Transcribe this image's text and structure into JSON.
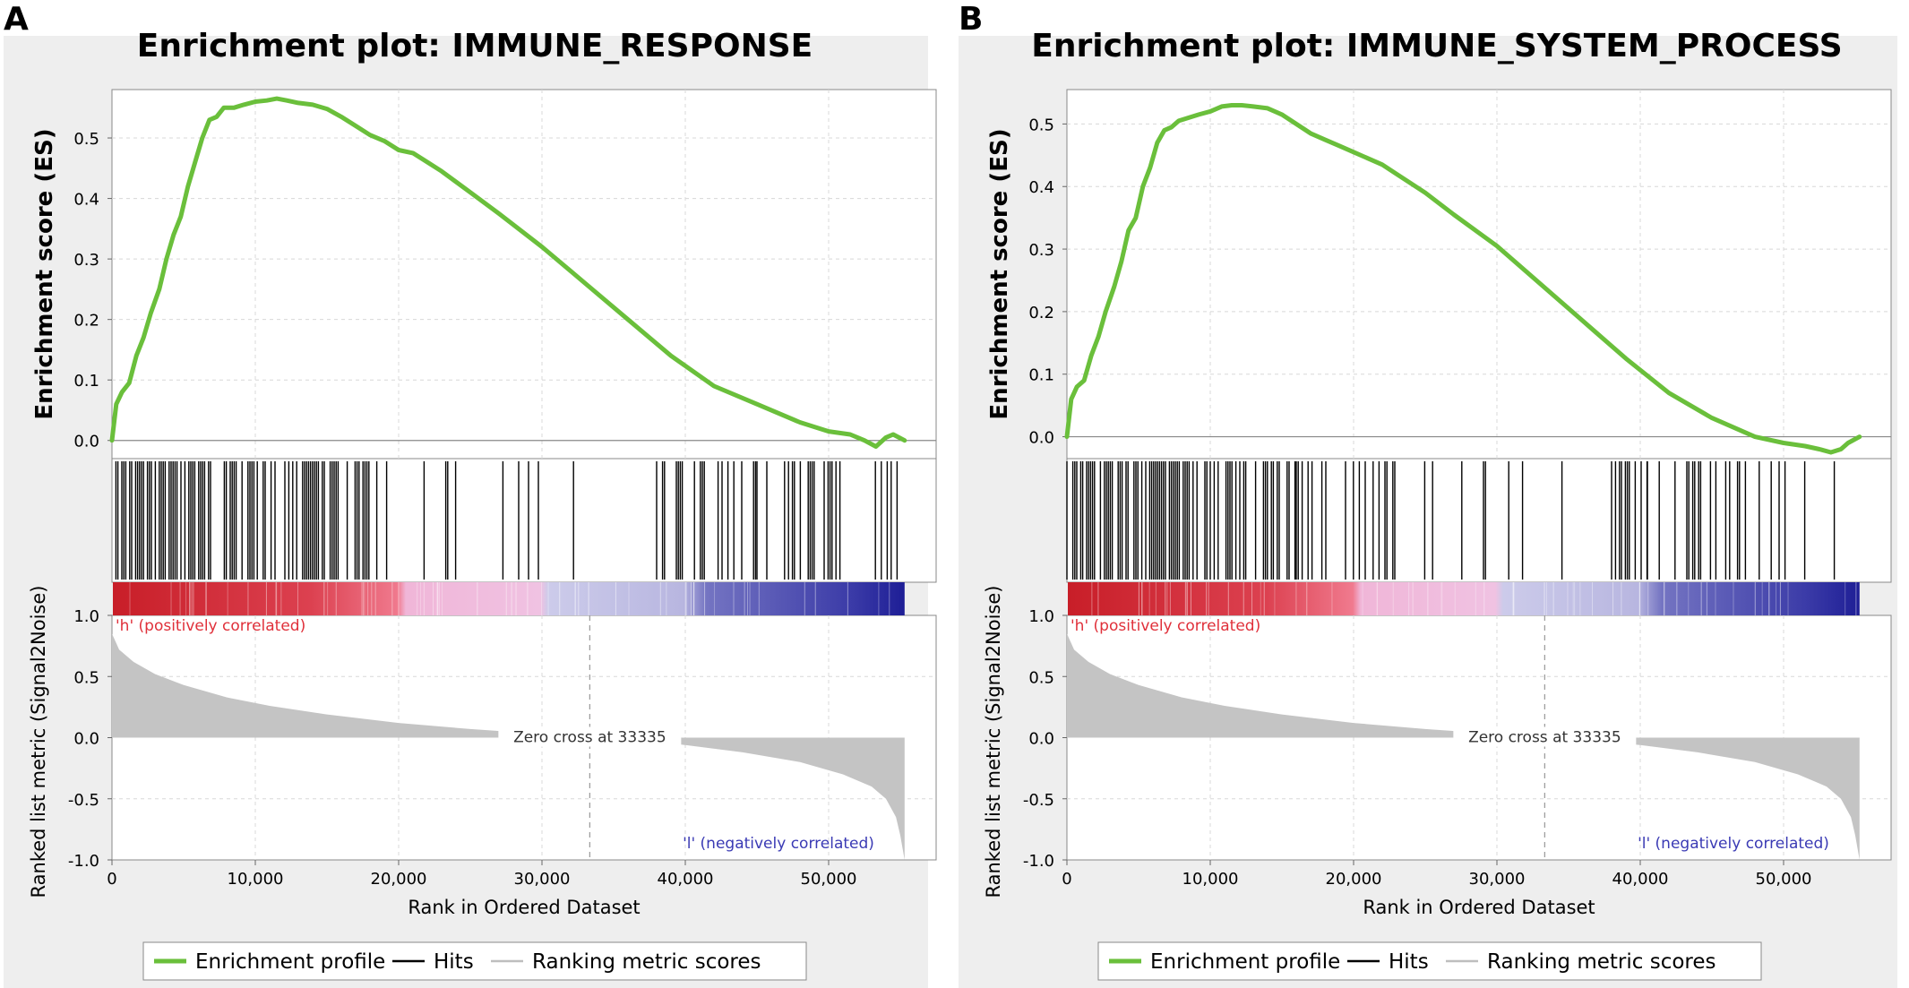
{
  "chart_data": [
    {
      "type": "line",
      "panel_label": "A",
      "title": "Enrichment plot: IMMUNE_RESPONSE",
      "es_ylabel": "Enrichment score (ES)",
      "metric_ylabel": "Ranked list metric (Signal2Noise)",
      "xlabel": "Rank in Ordered Dataset",
      "xlim": [
        0,
        57500
      ],
      "es_ylim": [
        -0.03,
        0.58
      ],
      "es_yticks": [
        "0.0",
        "0.1",
        "0.2",
        "0.3",
        "0.4",
        "0.5"
      ],
      "metric_ylim": [
        -1.0,
        1.0
      ],
      "metric_yticks": [
        "1.0",
        "0.5",
        "0.0",
        "-0.5",
        "-1.0"
      ],
      "xticks": [
        "0",
        "10,000",
        "20,000",
        "30,000",
        "40,000",
        "50,000"
      ],
      "n_ranks": 55300,
      "zero_cross": 33335,
      "zero_cross_label": "Zero cross at 33335",
      "pos_label": "'h' (positively correlated)",
      "neg_label": "'l' (negatively correlated)",
      "es_curve": {
        "x": [
          0,
          300,
          700,
          1200,
          1700,
          2200,
          2700,
          3300,
          3800,
          4300,
          4800,
          5300,
          5800,
          6300,
          6800,
          7300,
          7800,
          8500,
          9200,
          10000,
          10800,
          11500,
          12200,
          13000,
          14000,
          15000,
          16000,
          17000,
          18000,
          19000,
          20000,
          21000,
          22000,
          23000,
          25000,
          27000,
          30000,
          33000,
          36000,
          39000,
          42000,
          45000,
          48000,
          50000,
          51500,
          52500,
          53300,
          54000,
          54500,
          55300
        ],
        "y": [
          0.0,
          0.06,
          0.08,
          0.095,
          0.14,
          0.17,
          0.21,
          0.25,
          0.3,
          0.34,
          0.37,
          0.42,
          0.46,
          0.5,
          0.53,
          0.535,
          0.55,
          0.55,
          0.555,
          0.56,
          0.562,
          0.565,
          0.562,
          0.558,
          0.555,
          0.548,
          0.535,
          0.52,
          0.505,
          0.495,
          0.48,
          0.475,
          0.46,
          0.445,
          0.41,
          0.375,
          0.32,
          0.26,
          0.2,
          0.14,
          0.09,
          0.06,
          0.03,
          0.015,
          0.01,
          0.0,
          -0.01,
          0.005,
          0.01,
          0.0
        ]
      },
      "hit_segments": [
        [
          0,
          10000,
          1.0
        ],
        [
          10000,
          16000,
          0.8
        ],
        [
          16000,
          24000,
          0.55
        ],
        [
          24000,
          27000,
          0.12
        ],
        [
          27000,
          30000,
          0.15
        ],
        [
          30000,
          35000,
          0.12
        ],
        [
          38000,
          40500,
          0.6
        ],
        [
          40500,
          45000,
          0.4
        ],
        [
          45000,
          49000,
          0.55
        ],
        [
          49000,
          55300,
          0.3
        ]
      ],
      "metric_curve": {
        "x": [
          0,
          500,
          1500,
          3000,
          5000,
          8000,
          11000,
          15000,
          20000,
          25000,
          30000,
          33335,
          36000,
          40000,
          44000,
          48000,
          51000,
          53000,
          54000,
          54700,
          55000,
          55300
        ],
        "y": [
          0.85,
          0.72,
          0.62,
          0.52,
          0.43,
          0.33,
          0.26,
          0.19,
          0.12,
          0.07,
          0.03,
          0.0,
          -0.02,
          -0.06,
          -0.12,
          -0.2,
          -0.3,
          -0.4,
          -0.5,
          -0.65,
          -0.8,
          -1.0
        ]
      }
    },
    {
      "type": "line",
      "panel_label": "B",
      "title": "Enrichment plot: IMMUNE_SYSTEM_PROCESS",
      "es_ylabel": "Enrichment score (ES)",
      "metric_ylabel": "Ranked list metric (Signal2Noise)",
      "xlabel": "Rank in Ordered Dataset",
      "xlim": [
        0,
        57500
      ],
      "es_ylim": [
        -0.035,
        0.555
      ],
      "es_yticks": [
        "0.0",
        "0.1",
        "0.2",
        "0.3",
        "0.4",
        "0.5"
      ],
      "metric_ylim": [
        -1.0,
        1.0
      ],
      "metric_yticks": [
        "1.0",
        "0.5",
        "0.0",
        "-0.5",
        "-1.0"
      ],
      "xticks": [
        "0",
        "10,000",
        "20,000",
        "30,000",
        "40,000",
        "50,000"
      ],
      "n_ranks": 55300,
      "zero_cross": 33335,
      "zero_cross_label": "Zero cross at 33335",
      "pos_label": "'h' (positively correlated)",
      "neg_label": "'l' (negatively correlated)",
      "es_curve": {
        "x": [
          0,
          300,
          700,
          1200,
          1700,
          2200,
          2700,
          3300,
          3800,
          4300,
          4800,
          5300,
          5800,
          6300,
          6800,
          7300,
          7800,
          8500,
          9200,
          10000,
          10800,
          11500,
          12200,
          13000,
          14000,
          15000,
          16000,
          17000,
          18000,
          19000,
          20000,
          21000,
          22000,
          23000,
          25000,
          27000,
          30000,
          33000,
          36000,
          39000,
          42000,
          45000,
          48000,
          50000,
          51500,
          52500,
          53300,
          54000,
          54500,
          55300
        ],
        "y": [
          0.0,
          0.06,
          0.08,
          0.09,
          0.13,
          0.16,
          0.2,
          0.24,
          0.28,
          0.33,
          0.35,
          0.4,
          0.43,
          0.47,
          0.49,
          0.495,
          0.505,
          0.51,
          0.515,
          0.52,
          0.528,
          0.53,
          0.53,
          0.528,
          0.525,
          0.515,
          0.5,
          0.485,
          0.475,
          0.465,
          0.455,
          0.445,
          0.435,
          0.42,
          0.39,
          0.355,
          0.305,
          0.245,
          0.185,
          0.125,
          0.07,
          0.03,
          0.0,
          -0.01,
          -0.015,
          -0.02,
          -0.025,
          -0.02,
          -0.01,
          0.0
        ]
      },
      "hit_segments": [
        [
          0,
          10000,
          1.0
        ],
        [
          10000,
          16000,
          0.8
        ],
        [
          16000,
          24000,
          0.55
        ],
        [
          24000,
          27000,
          0.15
        ],
        [
          27000,
          30000,
          0.18
        ],
        [
          30000,
          35000,
          0.12
        ],
        [
          38000,
          40500,
          0.6
        ],
        [
          40500,
          45000,
          0.45
        ],
        [
          45000,
          49000,
          0.6
        ],
        [
          49000,
          55300,
          0.35
        ]
      ],
      "metric_curve": {
        "x": [
          0,
          500,
          1500,
          3000,
          5000,
          8000,
          11000,
          15000,
          20000,
          25000,
          30000,
          33335,
          36000,
          40000,
          44000,
          48000,
          51000,
          53000,
          54000,
          54700,
          55000,
          55300
        ],
        "y": [
          0.85,
          0.72,
          0.62,
          0.52,
          0.43,
          0.33,
          0.26,
          0.19,
          0.12,
          0.07,
          0.03,
          0.0,
          -0.02,
          -0.06,
          -0.12,
          -0.2,
          -0.3,
          -0.4,
          -0.5,
          -0.65,
          -0.8,
          -1.0
        ]
      }
    }
  ],
  "legend": {
    "items": [
      {
        "label": "Enrichment profile",
        "color": "#6abf3b"
      },
      {
        "label": "Hits",
        "color": "#000000"
      },
      {
        "label": "Ranking metric scores",
        "color": "#bebebe"
      }
    ]
  },
  "colors": {
    "es_line": "#6abf3b",
    "hits": "#000000",
    "metric": "#c4c4c4",
    "positive_label": "#e0303a",
    "negative_label": "#3a3ab4",
    "panel_bg": "#eeeeee"
  }
}
